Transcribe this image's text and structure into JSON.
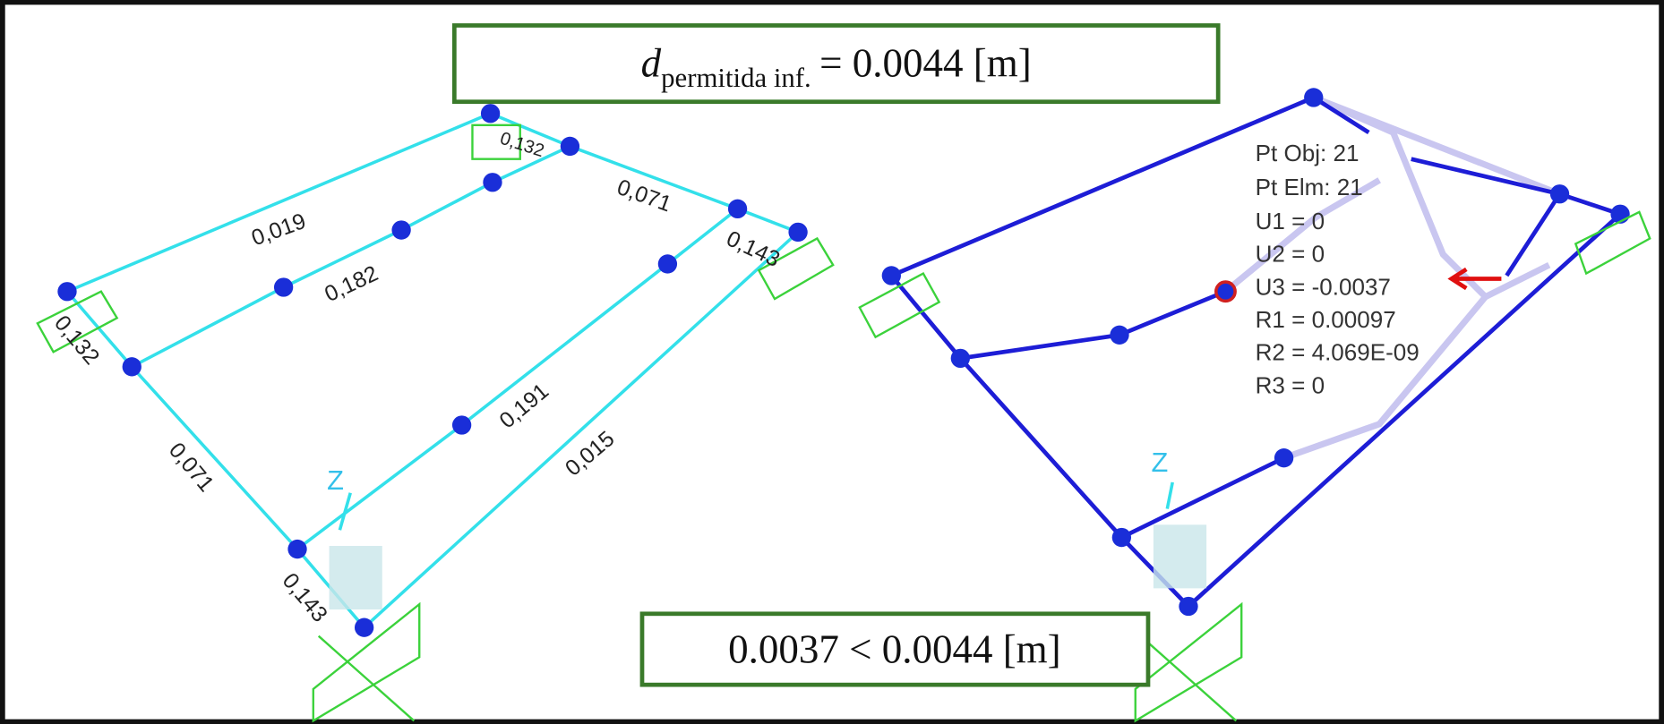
{
  "top_box": {
    "symbol": "d",
    "subscript": "permitida inf.",
    "expression": "= 0.0044 [m]"
  },
  "bottom_box": {
    "text": "0.0037 < 0.0044 [m]"
  },
  "left_view": {
    "labels": [
      "0,019",
      "0,182",
      "0,132",
      "0,071",
      "0,143",
      "0,132",
      "0,071",
      "0,191",
      "0,015",
      "0,143"
    ],
    "axis": "Z"
  },
  "right_view": {
    "info": [
      "Pt Obj: 21",
      "Pt Elm: 21",
      "U1 =  0",
      "U2 =  0",
      "U3 = -0.0037",
      "R1 =  0.00097",
      "R2 =  4.069E-09",
      "R3 =  0"
    ],
    "axis": "Z"
  }
}
